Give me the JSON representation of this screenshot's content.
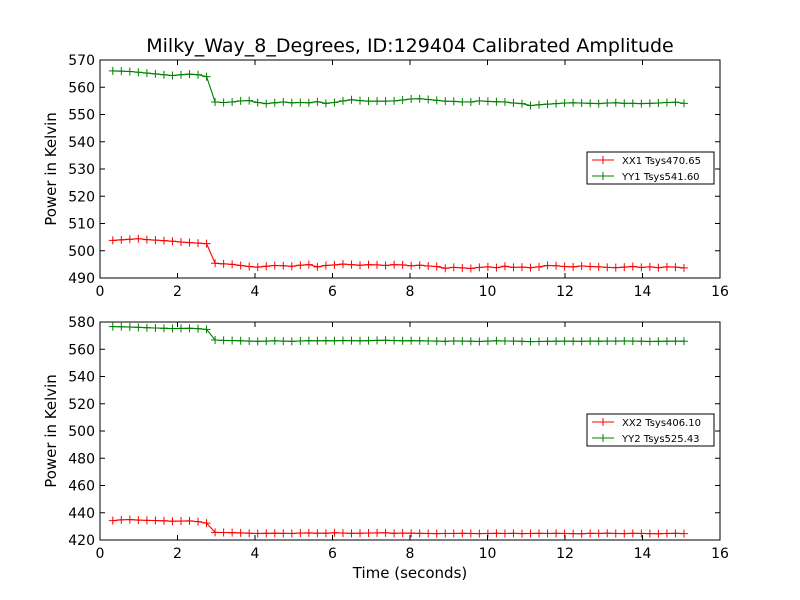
{
  "figure": {
    "title": "Milky_Way_8_Degrees, ID:129404 Calibrated Amplitude"
  },
  "chart_data": [
    {
      "type": "line",
      "title": "Milky_Way_8_Degrees, ID:129404 Calibrated Amplitude",
      "xlabel": "",
      "ylabel": "Power in Kelvin",
      "xlim": [
        0,
        16
      ],
      "ylim": [
        490,
        570
      ],
      "xticks": [
        "0",
        "2",
        "4",
        "6",
        "8",
        "10",
        "12",
        "14",
        "16"
      ],
      "yticks": [
        "490",
        "500",
        "510",
        "520",
        "530",
        "540",
        "550",
        "560",
        "570"
      ],
      "grid": false,
      "legend_position": "right",
      "x": [
        0.33,
        0.55,
        0.77,
        0.99,
        1.21,
        1.43,
        1.65,
        1.87,
        2.09,
        2.31,
        2.53,
        2.75,
        2.97,
        3.19,
        3.41,
        3.63,
        3.85,
        4.07,
        4.29,
        4.51,
        4.73,
        4.95,
        5.17,
        5.39,
        5.61,
        5.83,
        6.05,
        6.27,
        6.49,
        6.71,
        6.93,
        7.15,
        7.37,
        7.59,
        7.81,
        8.03,
        8.25,
        8.47,
        8.69,
        8.91,
        9.13,
        9.35,
        9.57,
        9.79,
        10.01,
        10.23,
        10.45,
        10.67,
        10.89,
        11.11,
        11.33,
        11.55,
        11.77,
        11.99,
        12.21,
        12.43,
        12.65,
        12.87,
        13.09,
        13.31,
        13.53,
        13.75,
        13.97,
        14.19,
        14.41,
        14.63,
        14.85,
        15.07
      ],
      "series": [
        {
          "name": "XX1 Tsys470.65",
          "color": "#ff0000",
          "values": [
            503.8,
            504.0,
            504.2,
            504.4,
            504.1,
            503.9,
            503.7,
            503.5,
            503.2,
            503.0,
            502.8,
            502.6,
            495.4,
            495.2,
            495.0,
            494.6,
            494.2,
            494.0,
            494.3,
            494.6,
            494.5,
            494.3,
            494.7,
            494.9,
            494.1,
            494.6,
            494.8,
            495.1,
            494.9,
            494.7,
            494.9,
            494.8,
            494.6,
            494.9,
            494.8,
            494.5,
            494.7,
            494.4,
            494.2,
            493.6,
            493.9,
            493.7,
            493.5,
            493.9,
            494.1,
            493.8,
            494.3,
            493.9,
            494.0,
            493.8,
            494.1,
            494.6,
            494.5,
            494.2,
            494.1,
            494.4,
            494.2,
            494.1,
            493.9,
            493.8,
            494.0,
            494.2,
            493.9,
            494.1,
            493.8,
            494.1,
            494.0,
            493.7
          ]
        },
        {
          "name": "YY1 Tsys541.60",
          "color": "#008000",
          "values": [
            566.0,
            565.9,
            565.8,
            565.5,
            565.2,
            564.9,
            564.6,
            564.3,
            564.6,
            564.8,
            564.6,
            563.9,
            554.6,
            554.4,
            554.6,
            555.0,
            555.1,
            554.4,
            554.0,
            554.3,
            554.6,
            554.3,
            554.4,
            554.3,
            554.7,
            554.1,
            554.4,
            555.0,
            555.4,
            555.1,
            554.9,
            554.9,
            554.9,
            555.0,
            555.3,
            555.7,
            555.8,
            555.5,
            555.2,
            554.9,
            554.8,
            554.6,
            554.6,
            555.0,
            554.8,
            554.7,
            554.6,
            554.2,
            554.0,
            553.3,
            553.6,
            553.8,
            554.0,
            554.2,
            554.3,
            554.2,
            554.1,
            554.0,
            554.2,
            554.3,
            554.1,
            554.1,
            554.0,
            554.1,
            554.2,
            554.4,
            554.5,
            554.1
          ]
        }
      ]
    },
    {
      "type": "line",
      "title": "",
      "xlabel": "Time (seconds)",
      "ylabel": "Power in Kelvin",
      "xlim": [
        0,
        16
      ],
      "ylim": [
        420,
        580
      ],
      "xticks": [
        "0",
        "2",
        "4",
        "6",
        "8",
        "10",
        "12",
        "14",
        "16"
      ],
      "yticks": [
        "420",
        "440",
        "460",
        "480",
        "500",
        "520",
        "540",
        "560",
        "580"
      ],
      "grid": false,
      "legend_position": "right",
      "x": [
        0.33,
        0.55,
        0.77,
        0.99,
        1.21,
        1.43,
        1.65,
        1.87,
        2.09,
        2.31,
        2.53,
        2.75,
        2.97,
        3.19,
        3.41,
        3.63,
        3.85,
        4.07,
        4.29,
        4.51,
        4.73,
        4.95,
        5.17,
        5.39,
        5.61,
        5.83,
        6.05,
        6.27,
        6.49,
        6.71,
        6.93,
        7.15,
        7.37,
        7.59,
        7.81,
        8.03,
        8.25,
        8.47,
        8.69,
        8.91,
        9.13,
        9.35,
        9.57,
        9.79,
        10.01,
        10.23,
        10.45,
        10.67,
        10.89,
        11.11,
        11.33,
        11.55,
        11.77,
        11.99,
        12.21,
        12.43,
        12.65,
        12.87,
        13.09,
        13.31,
        13.53,
        13.75,
        13.97,
        14.19,
        14.41,
        14.63,
        14.85,
        15.07
      ],
      "series": [
        {
          "name": "XX2 Tsys406.10",
          "color": "#ff0000",
          "values": [
            434.2,
            434.8,
            435.0,
            434.6,
            434.4,
            434.3,
            434.1,
            433.8,
            433.9,
            434.0,
            433.5,
            432.4,
            425.6,
            425.5,
            425.4,
            425.2,
            425.0,
            424.8,
            424.9,
            425.0,
            424.9,
            424.8,
            425.1,
            425.2,
            425.0,
            425.0,
            425.3,
            425.1,
            424.9,
            425.0,
            425.1,
            425.2,
            425.3,
            424.9,
            425.1,
            425.0,
            424.9,
            424.8,
            424.7,
            424.8,
            424.8,
            424.9,
            424.8,
            424.7,
            424.8,
            424.9,
            424.8,
            424.9,
            424.7,
            424.8,
            424.9,
            424.8,
            424.9,
            424.8,
            424.7,
            424.6,
            424.9,
            424.8,
            425.0,
            424.8,
            424.7,
            424.9,
            424.8,
            424.7,
            424.6,
            424.8,
            424.9,
            424.7
          ]
        },
        {
          "name": "YY2 Tsys525.43",
          "color": "#008000",
          "values": [
            576.6,
            576.5,
            576.3,
            576.1,
            575.8,
            575.6,
            575.4,
            575.2,
            575.3,
            575.4,
            575.1,
            574.6,
            566.8,
            566.5,
            566.4,
            566.2,
            566.0,
            565.8,
            566.0,
            566.2,
            566.0,
            565.8,
            566.1,
            566.3,
            566.2,
            566.3,
            566.2,
            566.4,
            566.3,
            566.2,
            566.3,
            566.5,
            566.6,
            566.4,
            566.2,
            566.3,
            566.2,
            566.1,
            566.0,
            565.8,
            566.1,
            566.0,
            565.9,
            565.7,
            566.0,
            566.2,
            566.1,
            566.0,
            565.8,
            565.6,
            565.7,
            565.8,
            565.9,
            566.0,
            565.9,
            565.8,
            566.0,
            565.9,
            566.0,
            566.0,
            566.1,
            566.0,
            565.9,
            565.7,
            565.8,
            565.9,
            566.0,
            565.9
          ]
        }
      ]
    }
  ]
}
